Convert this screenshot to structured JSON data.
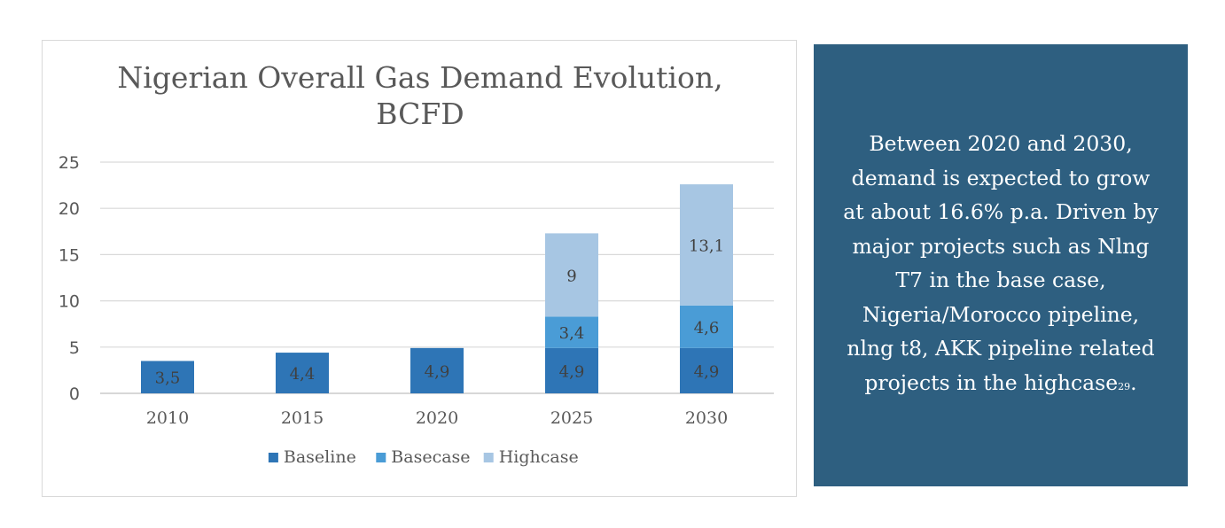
{
  "chart_data": {
    "type": "stacked-bar",
    "title": "Nigerian Overall Gas Demand Evolution, BCFD",
    "title_lines": [
      "Nigerian Overall Gas Demand Evolution,",
      "BCFD"
    ],
    "categories": [
      "2010",
      "2015",
      "2020",
      "2025",
      "2030"
    ],
    "series": [
      {
        "name": "Baseline",
        "color": "#2e75b6",
        "values": [
          3.5,
          4.4,
          4.9,
          4.9,
          4.9
        ],
        "labels": [
          "3,5",
          "4,4",
          "4,9",
          "4,9",
          "4,9"
        ]
      },
      {
        "name": "Basecase",
        "color": "#4a9cd6",
        "values": [
          0,
          0,
          0,
          3.4,
          4.6
        ],
        "labels": [
          "",
          "",
          "",
          "3,4",
          "4,6"
        ]
      },
      {
        "name": "Highcase",
        "color": "#a7c6e3",
        "values": [
          0,
          0,
          0,
          9,
          13.1
        ],
        "labels": [
          "",
          "",
          "",
          "9",
          "13,1"
        ]
      }
    ],
    "yticks": [
      0,
      5,
      10,
      15,
      20,
      25
    ],
    "ylim": [
      0,
      25
    ],
    "xlabel": "",
    "ylabel": "",
    "legend_position": "bottom",
    "grid": true
  },
  "info_box": {
    "text": "Between 2020 and 2030, demand is expected to grow at about 16.6% p.a. Driven by major projects such as Nlng T7 in the base case, Nigeria/Morocco pipeline, nlng t8, AKK pipeline related projects in the highcase",
    "footnote": "29",
    "background": "#2e5f80"
  }
}
